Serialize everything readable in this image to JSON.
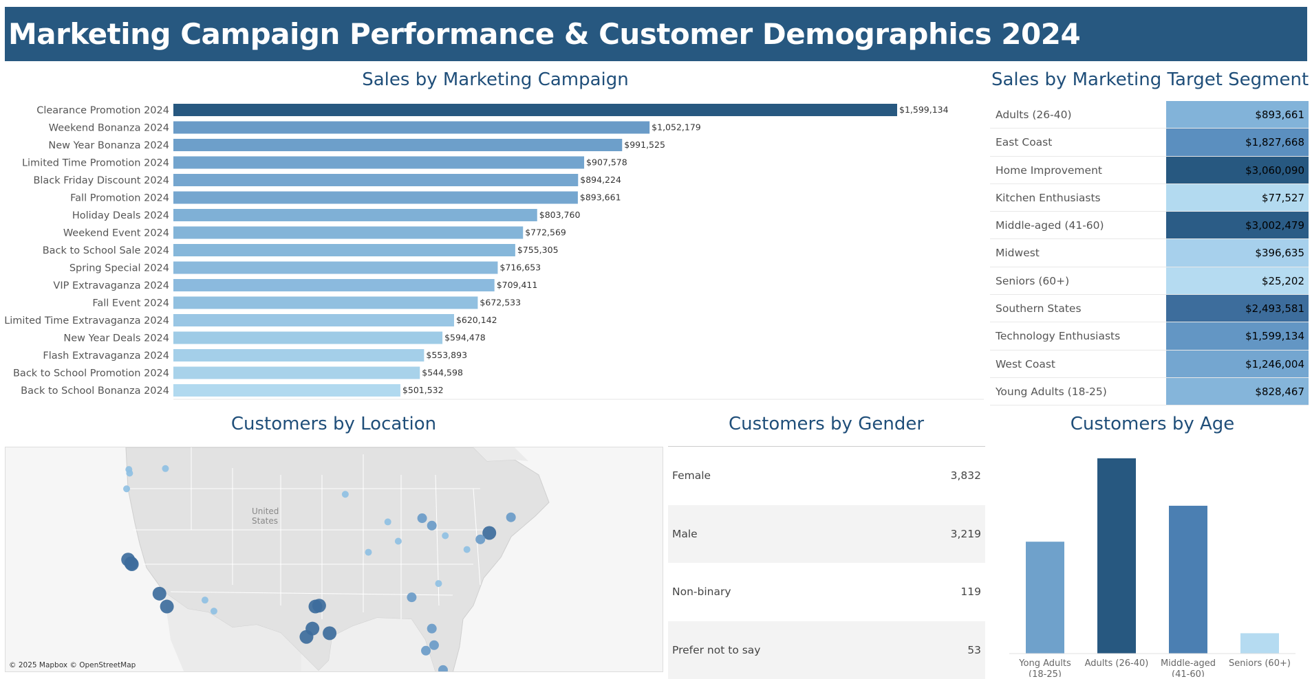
{
  "title": "Marketing Campaign Performance & Customer Demographics 2024",
  "colors": {
    "header": "#275880",
    "title_text": "#1f4e79"
  },
  "campaign": {
    "title": "Sales by Marketing Campaign"
  },
  "segment": {
    "title": "Sales by Marketing Target Segment",
    "rows": [
      {
        "label": "Adults (26-40)",
        "value": "$893,661",
        "color": "#82b3d9"
      },
      {
        "label": "East Coast",
        "value": "$1,827,668",
        "color": "#5b8fbf"
      },
      {
        "label": "Home Improvement",
        "value": "$3,060,090",
        "color": "#275880"
      },
      {
        "label": "Kitchen Enthusiasts",
        "value": "$77,527",
        "color": "#b3daf0"
      },
      {
        "label": "Middle-aged (41-60)",
        "value": "$3,002,479",
        "color": "#2b5c86"
      },
      {
        "label": "Midwest",
        "value": "$396,635",
        "color": "#a7d0ec"
      },
      {
        "label": "Seniors (60+)",
        "value": "$25,202",
        "color": "#b5dbf1"
      },
      {
        "label": "Southern States",
        "value": "$2,493,581",
        "color": "#3d6d9c"
      },
      {
        "label": "Technology Enthusiasts",
        "value": "$1,599,134",
        "color": "#6396c4"
      },
      {
        "label": "West Coast",
        "value": "$1,246,004",
        "color": "#74a6d0"
      },
      {
        "label": "Young Adults (18-25)",
        "value": "$828,467",
        "color": "#85b5da"
      }
    ]
  },
  "location": {
    "title": "Customers by Location",
    "country_label_1": "United",
    "country_label_2": "States",
    "credit": "© 2025 Mapbox © OpenStreetMap"
  },
  "gender": {
    "title": "Customers by Gender",
    "rows": [
      {
        "label": "Female",
        "value": "3,832"
      },
      {
        "label": "Male",
        "value": "3,219"
      },
      {
        "label": "Non-binary",
        "value": "119"
      },
      {
        "label": "Prefer not to say",
        "value": "53"
      }
    ]
  },
  "age": {
    "title": "Customers by Age"
  },
  "chart_data": [
    {
      "type": "bar",
      "orientation": "horizontal",
      "title": "Sales by Marketing Campaign",
      "categories": [
        "Clearance Promotion 2024",
        "Weekend Bonanza 2024",
        "New Year Bonanza 2024",
        "Limited Time Promotion 2024",
        "Black Friday Discount 2024",
        "Fall Promotion 2024",
        "Holiday Deals 2024",
        "Weekend Event 2024",
        "Back to School Sale 2024",
        "Spring Special 2024",
        "VIP Extravaganza 2024",
        "Fall Event 2024",
        "Limited Time Extravaganza 2024",
        "New Year Deals 2024",
        "Flash Extravaganza 2024",
        "Back to School Promotion 2024",
        "Back to School Bonanza 2024"
      ],
      "values": [
        1599134,
        1052179,
        991525,
        907578,
        894224,
        893661,
        803760,
        772569,
        755305,
        716653,
        709411,
        672533,
        620142,
        594478,
        553893,
        544598,
        501532
      ],
      "labels": [
        "$1,599,134",
        "$1,052,179",
        "$991,525",
        "$907,578",
        "$894,224",
        "$893,661",
        "$803,760",
        "$772,569",
        "$755,305",
        "$716,653",
        "$709,411",
        "$672,533",
        "$620,142",
        "$594,478",
        "$553,893",
        "$544,598",
        "$501,532"
      ],
      "colors": [
        "#275880",
        "#6a9bc7",
        "#6d9fca",
        "#72a4ce",
        "#75a6cf",
        "#75a6cf",
        "#7fb0d6",
        "#83b4d8",
        "#86b7da",
        "#8ab9dc",
        "#8bbade",
        "#91c0e0",
        "#99c6e4",
        "#9ecbe6",
        "#a4cfe9",
        "#a8d2ea",
        "#b1d9ef"
      ]
    },
    {
      "type": "scatter",
      "title": "Customers by Location",
      "points": [
        {
          "lon": -122.3,
          "lat": 47.6,
          "size": 1
        },
        {
          "lon": -122.2,
          "lat": 47.2,
          "size": 1
        },
        {
          "lon": -117.4,
          "lat": 47.7,
          "size": 1
        },
        {
          "lon": -122.6,
          "lat": 45.5,
          "size": 1
        },
        {
          "lon": -122.4,
          "lat": 37.8,
          "size": 3
        },
        {
          "lon": -122.0,
          "lat": 37.4,
          "size": 3
        },
        {
          "lon": -121.9,
          "lat": 37.3,
          "size": 3
        },
        {
          "lon": -118.2,
          "lat": 34.1,
          "size": 3
        },
        {
          "lon": -117.2,
          "lat": 32.7,
          "size": 3
        },
        {
          "lon": -112.1,
          "lat": 33.4,
          "size": 1
        },
        {
          "lon": -110.9,
          "lat": 32.2,
          "size": 1
        },
        {
          "lon": -96.8,
          "lat": 32.8,
          "size": 3
        },
        {
          "lon": -97.3,
          "lat": 32.7,
          "size": 3
        },
        {
          "lon": -95.4,
          "lat": 29.8,
          "size": 3
        },
        {
          "lon": -97.7,
          "lat": 30.3,
          "size": 3
        },
        {
          "lon": -98.5,
          "lat": 29.4,
          "size": 3
        },
        {
          "lon": -87.6,
          "lat": 41.9,
          "size": 1
        },
        {
          "lon": -90.2,
          "lat": 38.6,
          "size": 1
        },
        {
          "lon": -93.3,
          "lat": 44.9,
          "size": 1
        },
        {
          "lon": -86.2,
          "lat": 39.8,
          "size": 1
        },
        {
          "lon": -84.4,
          "lat": 33.7,
          "size": 2
        },
        {
          "lon": -80.8,
          "lat": 35.2,
          "size": 1
        },
        {
          "lon": -81.7,
          "lat": 30.3,
          "size": 2
        },
        {
          "lon": -82.5,
          "lat": 27.9,
          "size": 2
        },
        {
          "lon": -80.2,
          "lat": 25.8,
          "size": 2
        },
        {
          "lon": -81.4,
          "lat": 28.5,
          "size": 2
        },
        {
          "lon": -74.0,
          "lat": 40.7,
          "size": 3
        },
        {
          "lon": -75.2,
          "lat": 40.0,
          "size": 2
        },
        {
          "lon": -71.1,
          "lat": 42.4,
          "size": 2
        },
        {
          "lon": -77.0,
          "lat": 38.9,
          "size": 1
        },
        {
          "lon": -79.9,
          "lat": 40.4,
          "size": 1
        },
        {
          "lon": -83.0,
          "lat": 42.3,
          "size": 2
        },
        {
          "lon": -81.7,
          "lat": 41.5,
          "size": 2
        }
      ]
    },
    {
      "type": "bar",
      "title": "Customers by Age",
      "categories": [
        "Yong Adults (18-25)",
        "Adults (26-40)",
        "Middle-aged (41-60)",
        "Seniors (60+)"
      ],
      "tick_lines": [
        [
          "Yong Adults",
          "(18-25)"
        ],
        [
          "Adults (26-40)"
        ],
        [
          "Middle-aged",
          "(41-60)"
        ],
        [
          "Seniors (60+)"
        ]
      ],
      "values": [
        1650,
        2880,
        2180,
        300
      ],
      "colors": [
        "#6fa1cb",
        "#275880",
        "#4b7fb2",
        "#b5dbf1"
      ],
      "ylim": [
        0,
        3000
      ]
    }
  ]
}
